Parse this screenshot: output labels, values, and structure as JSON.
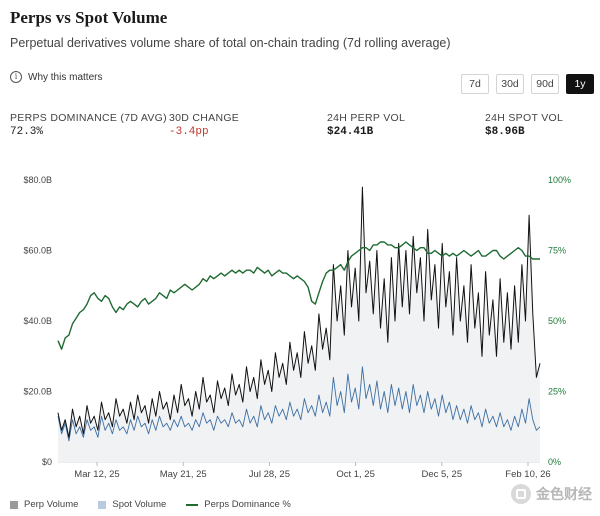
{
  "header": {
    "title": "Perps vs Spot Volume",
    "subtitle": "Perpetual derivatives volume share of total on-chain trading (7d rolling average)",
    "why_label": "Why this matters"
  },
  "ranges": [
    "7d",
    "30d",
    "90d",
    "1y"
  ],
  "active_range": "1y",
  "metrics": [
    {
      "label": "PERPS DOMINANCE (7D AVG)",
      "value": "72.3%"
    },
    {
      "label": "30D CHANGE",
      "value": "-3.4pp"
    },
    {
      "label": "24H PERP VOL",
      "value": "$24.41B"
    },
    {
      "label": "24H SPOT VOL",
      "value": "$8.96B"
    }
  ],
  "legend": [
    "Perp Volume",
    "Spot Volume",
    "Perps Dominance %"
  ],
  "watermark": "金色财经",
  "colors": {
    "perp": "#111111",
    "spot": "#3e6fa3",
    "dominance": "#1f6b32",
    "active": "#111111",
    "negative": "#c0392b"
  },
  "chart_data": {
    "type": "line",
    "x_range": [
      "2025-02-12",
      "2026-02-12"
    ],
    "x_ticks": [
      "Mar 12, 25",
      "May 21, 25",
      "Jul 28, 25",
      "Oct 1, 25",
      "Dec 5, 25",
      "Feb 10, 26"
    ],
    "y_left_ticks": [
      "$0",
      "$20.0B",
      "$40.0B",
      "$60.0B",
      "$80.0B"
    ],
    "y_right_ticks": [
      "0%",
      "25%",
      "50%",
      "75%",
      "100%"
    ],
    "y_left_range": [
      0,
      80
    ],
    "y_right_range": [
      0,
      100
    ],
    "grid": false,
    "legend_position": "bottom-left",
    "series": [
      {
        "name": "Perp Volume",
        "axis": "left",
        "unit": "$B",
        "style": "area",
        "values": [
          14,
          9,
          12,
          7,
          15,
          10,
          13,
          8,
          16,
          11,
          13,
          9,
          17,
          12,
          14,
          10,
          18,
          13,
          15,
          11,
          17,
          12,
          19,
          14,
          16,
          11,
          18,
          13,
          20,
          15,
          17,
          12,
          19,
          14,
          22,
          16,
          18,
          13,
          20,
          15,
          24,
          17,
          19,
          14,
          23,
          18,
          21,
          16,
          25,
          19,
          22,
          17,
          27,
          20,
          24,
          18,
          29,
          22,
          26,
          20,
          31,
          24,
          28,
          22,
          34,
          26,
          31,
          24,
          37,
          28,
          33,
          26,
          42,
          32,
          38,
          29,
          56,
          40,
          50,
          36,
          60,
          44,
          55,
          40,
          78,
          48,
          57,
          42,
          60,
          38,
          52,
          34,
          58,
          40,
          62,
          44,
          60,
          42,
          64,
          48,
          58,
          40,
          66,
          46,
          56,
          38,
          62,
          44,
          54,
          36,
          58,
          40,
          50,
          34,
          56,
          38,
          48,
          30,
          54,
          36,
          46,
          30,
          52,
          34,
          48,
          32,
          50,
          34,
          56,
          40,
          70,
          42,
          24,
          28
        ]
      },
      {
        "name": "Spot Volume",
        "axis": "left",
        "unit": "$B",
        "style": "line",
        "values": [
          13,
          8,
          11,
          6,
          12,
          8,
          10,
          7,
          12,
          9,
          10,
          7,
          13,
          9,
          11,
          8,
          12,
          9,
          10,
          8,
          12,
          9,
          13,
          10,
          11,
          8,
          12,
          9,
          13,
          10,
          11,
          9,
          12,
          10,
          13,
          10,
          11,
          9,
          12,
          10,
          14,
          11,
          12,
          9,
          13,
          11,
          12,
          10,
          14,
          11,
          12,
          10,
          15,
          11,
          13,
          10,
          16,
          12,
          14,
          11,
          16,
          13,
          15,
          12,
          17,
          13,
          15,
          12,
          18,
          14,
          16,
          13,
          19,
          14,
          17,
          13,
          24,
          16,
          20,
          14,
          25,
          17,
          21,
          15,
          27,
          18,
          22,
          16,
          23,
          15,
          20,
          14,
          22,
          16,
          21,
          15,
          20,
          14,
          22,
          16,
          19,
          14,
          20,
          15,
          18,
          13,
          19,
          14,
          17,
          12,
          16,
          12,
          15,
          11,
          16,
          12,
          14,
          10,
          15,
          11,
          13,
          10,
          14,
          10,
          12,
          9,
          13,
          10,
          15,
          11,
          18,
          12,
          9,
          10
        ]
      },
      {
        "name": "Perps Dominance %",
        "axis": "right",
        "unit": "%",
        "style": "line",
        "values": [
          43,
          40,
          44,
          45,
          49,
          51,
          53,
          54,
          56,
          59,
          60,
          58,
          57,
          59,
          58,
          55,
          53,
          55,
          54,
          56,
          57,
          56,
          55,
          57,
          58,
          56,
          57,
          58,
          60,
          59,
          58,
          61,
          60,
          61,
          62,
          63,
          62,
          61,
          62,
          63,
          65,
          64,
          66,
          65,
          66,
          67,
          66,
          67,
          68,
          67,
          68,
          67,
          68,
          68,
          67,
          69,
          68,
          67,
          68,
          66,
          67,
          68,
          67,
          67,
          66,
          65,
          66,
          65,
          64,
          62,
          57,
          56,
          60,
          64,
          67,
          68,
          68,
          69,
          70,
          68,
          71,
          73,
          74,
          75,
          76,
          76,
          75,
          77,
          77,
          78,
          78,
          77,
          77,
          76,
          76,
          77,
          78,
          77,
          76,
          75,
          76,
          76,
          74,
          74,
          75,
          74,
          73,
          74,
          73,
          74,
          73,
          74,
          75,
          74,
          73,
          74,
          75,
          73,
          73,
          74,
          75,
          75,
          73,
          72,
          73,
          74,
          75,
          76,
          75,
          73,
          73,
          72,
          72,
          72
        ]
      }
    ]
  }
}
